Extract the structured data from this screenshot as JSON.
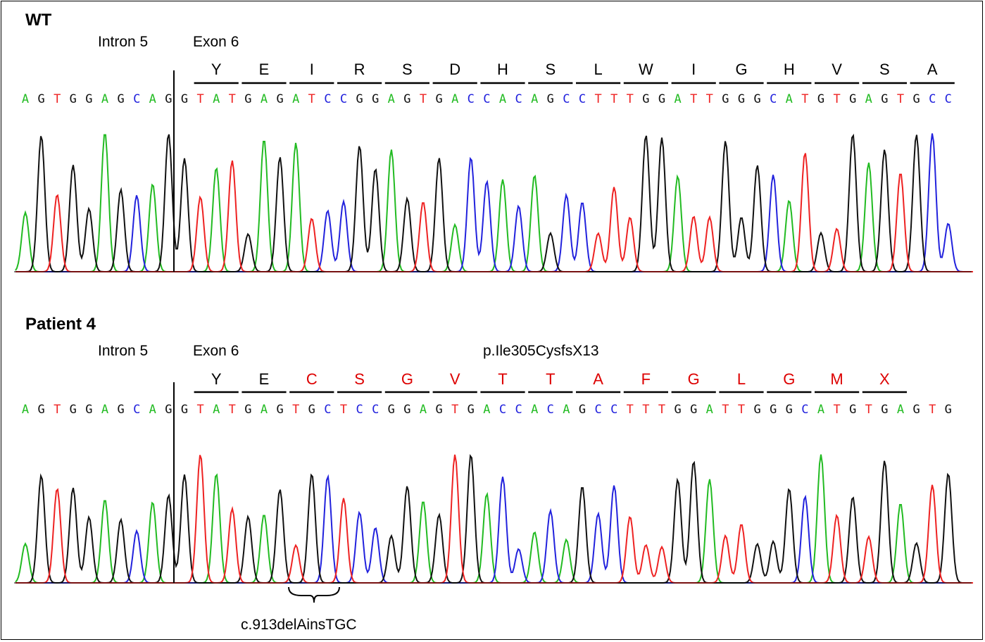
{
  "colors": {
    "A": "#22bb22",
    "C": "#2222dd",
    "G": "#111111",
    "T": "#ee2222",
    "mutant_aa": "#dd0000",
    "normal_aa": "#000000"
  },
  "panels": [
    {
      "id": "wt",
      "title": "WT",
      "intron_label": "Intron 5",
      "exon_label": "Exon 6",
      "mutation_label": "",
      "annotation": "",
      "amino_acids": [
        "Y",
        "E",
        "I",
        "R",
        "S",
        "D",
        "H",
        "S",
        "L",
        "W",
        "I",
        "G",
        "H",
        "V",
        "S",
        "A"
      ],
      "mutant_aa_from": 99,
      "sequence": "AGTGGAGCAGGTATGAGATCCGGAGTGACCACAGCCTTTGGATTGGGCATGTGAGTGCC"
    },
    {
      "id": "patient",
      "title": "Patient 4",
      "intron_label": "Intron 5",
      "exon_label": "Exon 6",
      "mutation_label": "p.Ile305CysfsX13",
      "annotation": "c.913delAinsTGC",
      "amino_acids": [
        "Y",
        "E",
        "C",
        "S",
        "G",
        "V",
        "T",
        "T",
        "A",
        "F",
        "G",
        "L",
        "G",
        "M",
        "X"
      ],
      "mutant_aa_from": 2,
      "sequence": "AGTGGAGCAGGTATGAGTGCTCCGGAGTGACCACAGCCTTTGGATTGGGCATGTGAGTG"
    }
  ]
}
